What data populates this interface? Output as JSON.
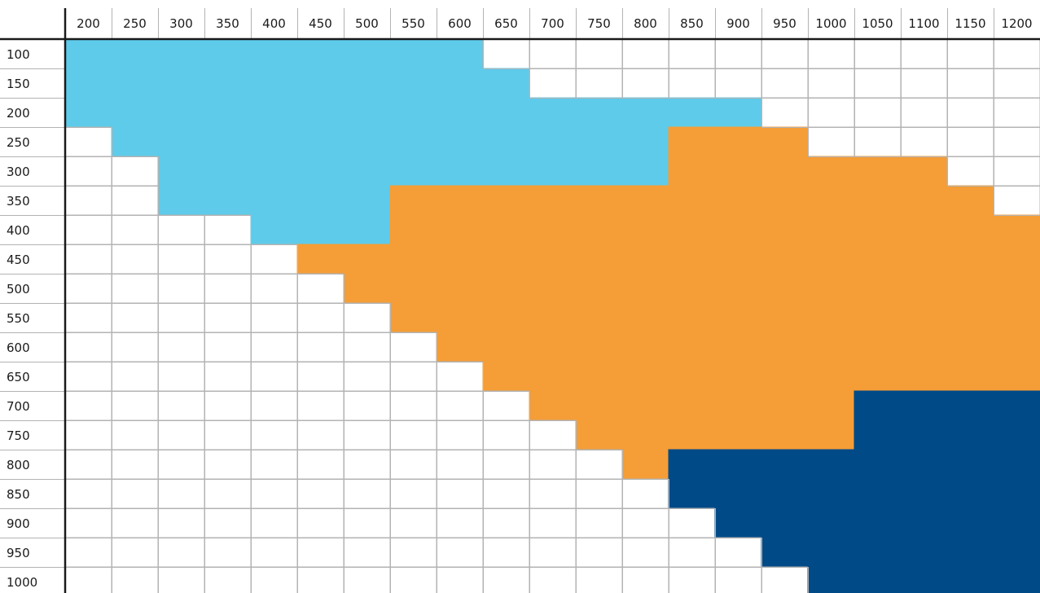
{
  "chart_data": {
    "type": "heatmap",
    "title": "",
    "xlabel": "",
    "ylabel": "",
    "x_ticks": [
      200,
      250,
      300,
      350,
      400,
      450,
      500,
      550,
      600,
      650,
      700,
      750,
      800,
      850,
      900,
      950,
      1000,
      1050,
      1100,
      1150,
      1200
    ],
    "y_ticks": [
      100,
      150,
      200,
      250,
      300,
      350,
      400,
      450,
      500,
      550,
      600,
      650,
      700,
      750,
      800,
      850,
      900,
      950,
      1000
    ],
    "colors": {
      "light_blue": "#5ecbea",
      "orange": "#f59d36",
      "dark_blue": "#004a88",
      "empty": "#ffffff",
      "grid": "#b3b3b3",
      "axis": "#1a1a1a"
    },
    "regions_by_row": [
      {
        "y": 100,
        "spans": [
          {
            "color": "light_blue",
            "from": 200,
            "to": 600
          }
        ]
      },
      {
        "y": 150,
        "spans": [
          {
            "color": "light_blue",
            "from": 200,
            "to": 650
          }
        ]
      },
      {
        "y": 200,
        "spans": [
          {
            "color": "light_blue",
            "from": 200,
            "to": 900
          }
        ]
      },
      {
        "y": 250,
        "spans": [
          {
            "color": "light_blue",
            "from": 250,
            "to": 800
          },
          {
            "color": "orange",
            "from": 850,
            "to": 950
          }
        ]
      },
      {
        "y": 300,
        "spans": [
          {
            "color": "light_blue",
            "from": 300,
            "to": 800
          },
          {
            "color": "orange",
            "from": 850,
            "to": 1100
          }
        ]
      },
      {
        "y": 350,
        "spans": [
          {
            "color": "light_blue",
            "from": 300,
            "to": 500
          },
          {
            "color": "orange",
            "from": 550,
            "to": 1150
          }
        ]
      },
      {
        "y": 400,
        "spans": [
          {
            "color": "light_blue",
            "from": 400,
            "to": 500
          },
          {
            "color": "orange",
            "from": 550,
            "to": 1200
          }
        ]
      },
      {
        "y": 450,
        "spans": [
          {
            "color": "orange",
            "from": 450,
            "to": 1200
          }
        ]
      },
      {
        "y": 500,
        "spans": [
          {
            "color": "orange",
            "from": 500,
            "to": 1200
          }
        ]
      },
      {
        "y": 550,
        "spans": [
          {
            "color": "orange",
            "from": 550,
            "to": 1200
          }
        ]
      },
      {
        "y": 600,
        "spans": [
          {
            "color": "orange",
            "from": 600,
            "to": 1200
          }
        ]
      },
      {
        "y": 650,
        "spans": [
          {
            "color": "orange",
            "from": 650,
            "to": 1200
          }
        ]
      },
      {
        "y": 700,
        "spans": [
          {
            "color": "orange",
            "from": 700,
            "to": 1000
          },
          {
            "color": "dark_blue",
            "from": 1050,
            "to": 1200
          }
        ]
      },
      {
        "y": 750,
        "spans": [
          {
            "color": "orange",
            "from": 750,
            "to": 1000
          },
          {
            "color": "dark_blue",
            "from": 1050,
            "to": 1200
          }
        ]
      },
      {
        "y": 800,
        "spans": [
          {
            "color": "orange",
            "from": 800,
            "to": 800
          },
          {
            "color": "dark_blue",
            "from": 850,
            "to": 1200
          }
        ]
      },
      {
        "y": 850,
        "spans": [
          {
            "color": "dark_blue",
            "from": 850,
            "to": 1200
          }
        ]
      },
      {
        "y": 900,
        "spans": [
          {
            "color": "dark_blue",
            "from": 900,
            "to": 1200
          }
        ]
      },
      {
        "y": 950,
        "spans": [
          {
            "color": "dark_blue",
            "from": 950,
            "to": 1200
          }
        ]
      },
      {
        "y": 1000,
        "spans": [
          {
            "color": "dark_blue",
            "from": 1000,
            "to": 1200
          }
        ]
      }
    ]
  }
}
